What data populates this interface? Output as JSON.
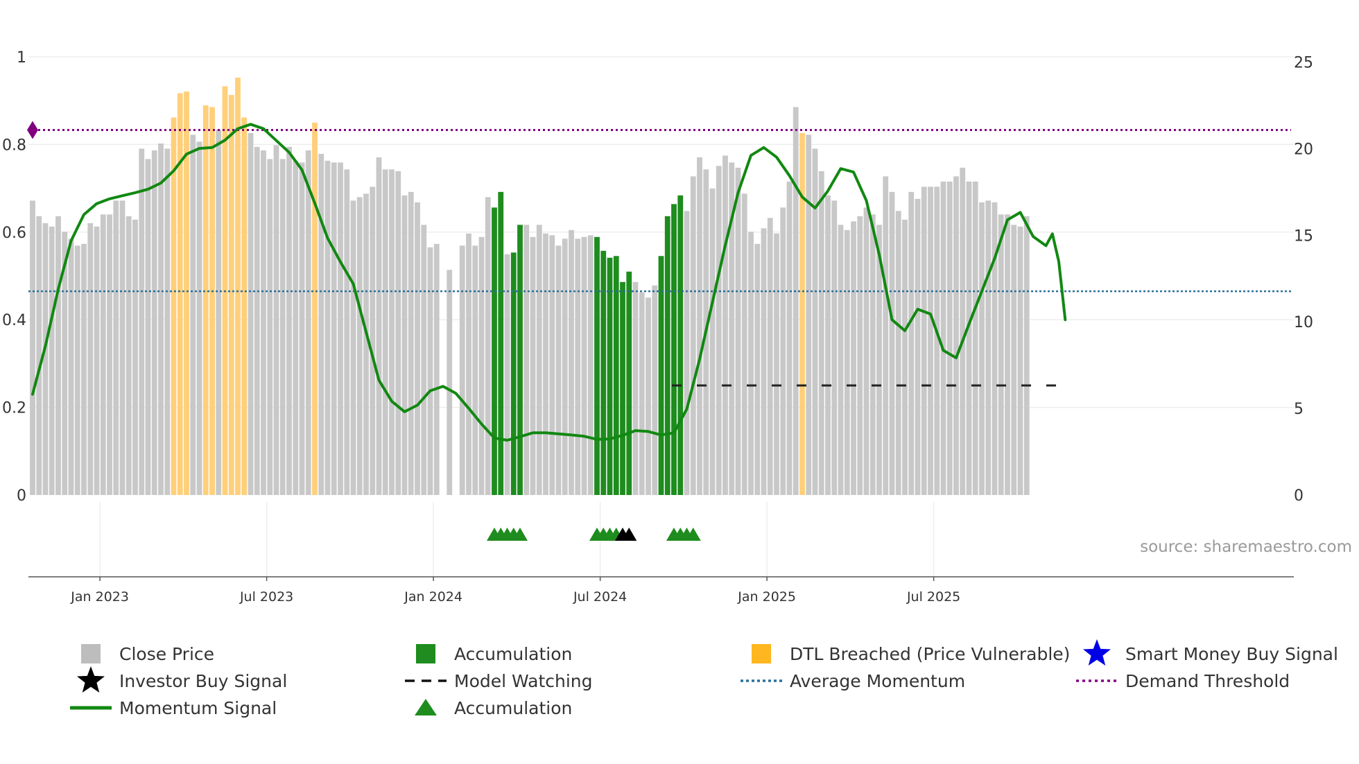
{
  "chart_data": {
    "type": "bar",
    "source_label": "source: sharemaestro.com",
    "left_axis": {
      "ticks": [
        "0",
        "0.2",
        "0.4",
        "0.6",
        "0.8",
        "1"
      ],
      "range": [
        0,
        1
      ]
    },
    "right_axis": {
      "ticks": [
        "0",
        "5",
        "10",
        "15",
        "20",
        "25"
      ],
      "range": [
        0,
        25.3
      ]
    },
    "x_axis": {
      "labels": [
        "Jan 2023",
        "Jul 2023",
        "Jan 2024",
        "Jul 2024",
        "Jan 2025",
        "Jul 2025"
      ],
      "label_weeks": [
        10.5,
        36.5,
        62.5,
        88.5,
        114.5,
        140.5
      ]
    },
    "close_price": [
      17.0,
      16.1,
      15.7,
      15.5,
      16.1,
      15.2,
      14.8,
      14.4,
      14.5,
      15.7,
      15.5,
      16.2,
      16.2,
      17.0,
      17.0,
      16.1,
      15.9,
      20.0,
      19.4,
      19.9,
      20.3,
      20.0,
      21.8,
      23.2,
      23.3,
      20.8,
      20.4,
      22.5,
      22.4,
      21.1,
      23.6,
      23.1,
      24.1,
      21.8,
      20.9,
      20.1,
      19.9,
      19.4,
      20.2,
      19.4,
      20.1,
      19.3,
      19.2,
      19.9,
      21.5,
      19.7,
      19.3,
      19.2,
      19.2,
      18.8,
      17.0,
      17.2,
      17.4,
      17.8,
      19.5,
      18.8,
      18.8,
      18.7,
      17.3,
      17.5,
      16.9,
      15.6,
      14.3,
      14.5,
      null,
      13.0,
      null,
      14.4,
      15.1,
      14.4,
      14.9,
      17.2,
      16.6,
      17.5,
      13.9,
      14.0,
      15.6,
      15.6,
      14.9,
      15.6,
      15.1,
      15.0,
      14.4,
      14.8,
      15.3,
      14.8,
      14.9,
      15.0,
      14.9,
      14.1,
      13.7,
      13.8,
      12.3,
      12.9,
      12.3,
      11.7,
      11.4,
      12.1,
      13.8,
      16.1,
      16.8,
      17.3,
      16.4,
      18.4,
      19.5,
      18.8,
      17.7,
      19.0,
      19.6,
      19.2,
      18.9,
      17.4,
      15.2,
      14.5,
      15.4,
      16.0,
      15.1,
      16.6,
      18.1,
      22.4,
      20.9,
      20.8,
      20.0,
      18.7,
      17.3,
      17.0,
      15.6,
      15.3,
      15.8,
      16.1,
      16.6,
      16.2,
      15.6,
      18.4,
      17.5,
      16.4,
      15.9,
      17.5,
      17.1,
      17.8,
      17.8,
      17.8,
      18.1,
      18.1,
      18.4,
      18.9,
      18.1,
      18.1,
      16.9,
      17.0,
      16.9,
      16.2,
      16.2,
      15.6,
      15.5,
      16.1
    ],
    "accumulation_weeks": [
      72,
      73,
      75,
      76,
      88,
      89,
      90,
      91,
      92,
      93,
      98,
      99,
      100,
      101
    ],
    "dtl_breached_weeks": [
      22,
      23,
      24,
      27,
      28,
      30,
      31,
      32,
      33,
      44,
      120
    ],
    "momentum_signal": [
      [
        0,
        0.23
      ],
      [
        2,
        0.34
      ],
      [
        4,
        0.47
      ],
      [
        6,
        0.58
      ],
      [
        8,
        0.64
      ],
      [
        10,
        0.665
      ],
      [
        12,
        0.676
      ],
      [
        14,
        0.683
      ],
      [
        16,
        0.69
      ],
      [
        18,
        0.698
      ],
      [
        20,
        0.712
      ],
      [
        22,
        0.74
      ],
      [
        24,
        0.778
      ],
      [
        26,
        0.791
      ],
      [
        28,
        0.793
      ],
      [
        30,
        0.81
      ],
      [
        32,
        0.836
      ],
      [
        34,
        0.846
      ],
      [
        36,
        0.836
      ],
      [
        38,
        0.809
      ],
      [
        40,
        0.782
      ],
      [
        42,
        0.742
      ],
      [
        44,
        0.666
      ],
      [
        46,
        0.586
      ],
      [
        48,
        0.532
      ],
      [
        50,
        0.482
      ],
      [
        52,
        0.372
      ],
      [
        54,
        0.262
      ],
      [
        56,
        0.214
      ],
      [
        58,
        0.19
      ],
      [
        60,
        0.205
      ],
      [
        62,
        0.238
      ],
      [
        64,
        0.248
      ],
      [
        66,
        0.232
      ],
      [
        68,
        0.198
      ],
      [
        70,
        0.162
      ],
      [
        72,
        0.13
      ],
      [
        74,
        0.125
      ],
      [
        76,
        0.133
      ],
      [
        78,
        0.142
      ],
      [
        80,
        0.142
      ],
      [
        84,
        0.137
      ],
      [
        86,
        0.134
      ],
      [
        88,
        0.127
      ],
      [
        90,
        0.128
      ],
      [
        92,
        0.136
      ],
      [
        94,
        0.147
      ],
      [
        96,
        0.145
      ],
      [
        98,
        0.137
      ],
      [
        100,
        0.142
      ],
      [
        102,
        0.196
      ],
      [
        104,
        0.31
      ],
      [
        106,
        0.44
      ],
      [
        108,
        0.57
      ],
      [
        110,
        0.69
      ],
      [
        112,
        0.775
      ],
      [
        114,
        0.793
      ],
      [
        116,
        0.771
      ],
      [
        118,
        0.729
      ],
      [
        120,
        0.68
      ],
      [
        122,
        0.655
      ],
      [
        124,
        0.694
      ],
      [
        126,
        0.745
      ],
      [
        128,
        0.737
      ],
      [
        130,
        0.672
      ],
      [
        132,
        0.549
      ],
      [
        134,
        0.4
      ],
      [
        136,
        0.375
      ],
      [
        138,
        0.424
      ],
      [
        140,
        0.413
      ],
      [
        142,
        0.33
      ],
      [
        144,
        0.313
      ],
      [
        146,
        0.39
      ],
      [
        148,
        0.465
      ],
      [
        150,
        0.54
      ],
      [
        152,
        0.628
      ],
      [
        154,
        0.645
      ],
      [
        156,
        0.59
      ],
      [
        158,
        0.569
      ],
      [
        159,
        0.596
      ],
      [
        160,
        0.533
      ],
      [
        161,
        0.4
      ]
    ],
    "average_momentum": 0.465,
    "demand_threshold": 0.833,
    "model_watching": {
      "value": 0.25,
      "from_week": 100
    },
    "accumulation_markers": [
      72,
      73,
      74,
      75,
      76,
      88,
      89,
      90,
      91,
      100,
      101,
      102,
      103
    ],
    "investor_buy_markers": [
      92,
      93
    ],
    "legend": [
      "Close Price",
      "Accumulation",
      "DTL Breached (Price Vulnerable)",
      "Smart Money Buy Signal",
      "Investor Buy Signal",
      "Model Watching",
      "Average Momentum",
      "Demand Threshold",
      "Momentum Signal",
      "Accumulation"
    ],
    "colors": {
      "close_price": "#c8c8c8",
      "accumulation": "#1e8c1e",
      "dtl": "#ffcf7a",
      "momentum": "#118811",
      "average": "#2a6f9a",
      "demand": "#800080",
      "smart_money": "#0000e6",
      "investor": "#000000"
    }
  }
}
